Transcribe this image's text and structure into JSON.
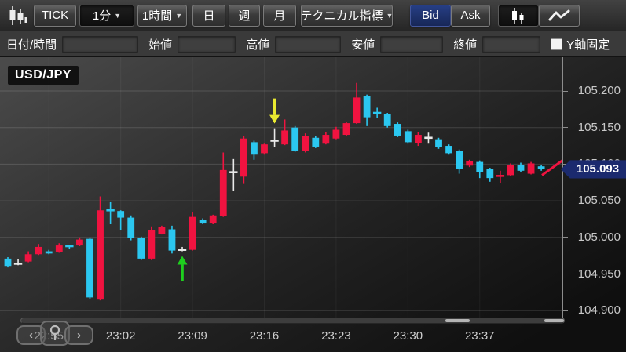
{
  "toolbar": {
    "app_icon": "candlestick-chart-icon",
    "tick_label": "TICK",
    "tf_1min": "1分",
    "tf_1hour": "1時間",
    "tf_day": "日",
    "tf_week": "週",
    "tf_month": "月",
    "indicators_label": "テクニカル指標",
    "caret": "▼",
    "bid_label": "Bid",
    "ask_label": "Ask",
    "selected_timeframe": "1分",
    "selected_side": "Bid",
    "selected_chart_type": "candlestick"
  },
  "infobar": {
    "fields": [
      {
        "label": "日付/時間",
        "value": ""
      },
      {
        "label": "始値",
        "value": ""
      },
      {
        "label": "高値",
        "value": ""
      },
      {
        "label": "安値",
        "value": ""
      },
      {
        "label": "終値",
        "value": ""
      }
    ],
    "y_lock_label": "Y軸固定",
    "y_lock_checked": false
  },
  "chart": {
    "symbol": "USD/JPY",
    "current_price": "105.093",
    "colors": {
      "up": "#f01340",
      "down": "#2bc7f0",
      "doji_white": "#e9e9e9",
      "doji_cyan": "#2bc7f0",
      "doji_red": "#f01340",
      "badge": "#1b2a6e",
      "arrow_up": "#1ecf1e",
      "arrow_down": "#e9e930"
    }
  },
  "chart_data": {
    "type": "candlestick",
    "symbol": "USD/JPY",
    "interval": "1分",
    "price_side": "Bid",
    "ylim": [
      104.892,
      105.241
    ],
    "y_ticks": [
      "105.200",
      "105.150",
      "105.100",
      "105.050",
      "105.000",
      "104.950",
      "104.900"
    ],
    "y_tick_values": [
      105.2,
      105.15,
      105.1,
      105.05,
      105.0,
      104.95,
      104.9
    ],
    "x_labels": [
      "22:55",
      "23:02",
      "23:09",
      "23:16",
      "23:23",
      "23:30",
      "23:37"
    ],
    "x_label_indices": [
      4,
      11,
      18,
      25,
      32,
      39,
      46
    ],
    "current_price": 105.093,
    "candle_order": [
      "time",
      "open",
      "high",
      "low",
      "close",
      "dir"
    ],
    "dir_legend": {
      "u": "up-red",
      "d": "down-cyan",
      "dw": "doji-white",
      "dc": "doji-cyan",
      "dr": "doji-red"
    },
    "candles": [
      [
        "22:51",
        104.971,
        104.973,
        104.959,
        104.961,
        "d"
      ],
      [
        "22:52",
        104.964,
        104.97,
        104.962,
        104.964,
        "dw"
      ],
      [
        "22:53",
        104.967,
        104.981,
        104.966,
        104.977,
        "u"
      ],
      [
        "22:54",
        104.977,
        104.991,
        104.976,
        104.987,
        "u"
      ],
      [
        "22:55",
        104.981,
        104.983,
        104.977,
        104.978,
        "d"
      ],
      [
        "22:56",
        104.98,
        104.992,
        104.979,
        104.989,
        "u"
      ],
      [
        "22:57",
        104.988,
        104.99,
        104.984,
        104.988,
        "dc"
      ],
      [
        "22:58",
        104.989,
        105.0,
        104.988,
        104.997,
        "u"
      ],
      [
        "22:59",
        104.998,
        105.0,
        104.916,
        104.918,
        "d"
      ],
      [
        "23:00",
        104.915,
        105.056,
        104.914,
        105.037,
        "u"
      ],
      [
        "23:01",
        105.037,
        105.048,
        105.018,
        105.037,
        "dc"
      ],
      [
        "23:02",
        105.036,
        105.037,
        105.01,
        105.027,
        "d"
      ],
      [
        "23:03",
        105.027,
        105.03,
        104.996,
        104.999,
        "d"
      ],
      [
        "23:04",
        104.999,
        105.001,
        104.969,
        104.971,
        "d"
      ],
      [
        "23:05",
        104.971,
        105.015,
        104.969,
        105.01,
        "u"
      ],
      [
        "23:06",
        105.005,
        105.016,
        105.004,
        105.014,
        "u"
      ],
      [
        "23:07",
        105.011,
        105.016,
        104.978,
        104.982,
        "d"
      ],
      [
        "23:08",
        104.983,
        104.987,
        104.981,
        104.983,
        "dw"
      ],
      [
        "23:09",
        104.983,
        105.034,
        104.982,
        105.028,
        "u"
      ],
      [
        "23:10",
        105.024,
        105.026,
        105.018,
        105.019,
        "d"
      ],
      [
        "23:11",
        105.019,
        105.031,
        105.018,
        105.03,
        "u"
      ],
      [
        "23:12",
        105.029,
        105.116,
        105.028,
        105.092,
        "u"
      ],
      [
        "23:13",
        105.089,
        105.107,
        105.063,
        105.089,
        "dw"
      ],
      [
        "23:14",
        105.083,
        105.138,
        105.073,
        105.135,
        "u"
      ],
      [
        "23:15",
        105.13,
        105.132,
        105.106,
        105.113,
        "d"
      ],
      [
        "23:16",
        105.115,
        105.128,
        105.113,
        105.127,
        "u"
      ],
      [
        "23:17",
        105.132,
        105.149,
        105.123,
        105.132,
        "dw"
      ],
      [
        "23:18",
        105.127,
        105.161,
        105.126,
        105.146,
        "u"
      ],
      [
        "23:19",
        105.15,
        105.152,
        105.117,
        105.118,
        "d"
      ],
      [
        "23:20",
        105.118,
        105.142,
        105.116,
        105.138,
        "u"
      ],
      [
        "23:21",
        105.136,
        105.138,
        105.122,
        105.124,
        "d"
      ],
      [
        "23:22",
        105.128,
        105.144,
        105.127,
        105.14,
        "u"
      ],
      [
        "23:23",
        105.135,
        105.151,
        105.134,
        105.147,
        "u"
      ],
      [
        "23:24",
        105.14,
        105.158,
        105.138,
        105.156,
        "u"
      ],
      [
        "23:25",
        105.156,
        105.211,
        105.155,
        105.191,
        "u"
      ],
      [
        "23:26",
        105.193,
        105.195,
        105.152,
        105.164,
        "d"
      ],
      [
        "23:27",
        105.17,
        105.177,
        105.163,
        105.17,
        "dc"
      ],
      [
        "23:28",
        105.168,
        105.17,
        105.15,
        105.152,
        "d"
      ],
      [
        "23:29",
        105.155,
        105.157,
        105.137,
        105.139,
        "d"
      ],
      [
        "23:30",
        105.145,
        105.147,
        105.128,
        105.13,
        "d"
      ],
      [
        "23:31",
        105.129,
        105.144,
        105.125,
        105.14,
        "u"
      ],
      [
        "23:32",
        105.136,
        105.143,
        105.128,
        105.136,
        "dw"
      ],
      [
        "23:33",
        105.134,
        105.136,
        105.121,
        105.123,
        "d"
      ],
      [
        "23:34",
        105.125,
        105.127,
        105.113,
        105.115,
        "d"
      ],
      [
        "23:35",
        105.118,
        105.12,
        105.087,
        105.093,
        "d"
      ],
      [
        "23:36",
        105.098,
        105.106,
        105.096,
        105.104,
        "u"
      ],
      [
        "23:37",
        105.103,
        105.105,
        105.081,
        105.089,
        "d"
      ],
      [
        "23:38",
        105.093,
        105.095,
        105.076,
        105.081,
        "d"
      ],
      [
        "23:39",
        105.084,
        105.091,
        105.074,
        105.084,
        "dr"
      ],
      [
        "23:40",
        105.085,
        105.101,
        105.084,
        105.099,
        "u"
      ],
      [
        "23:41",
        105.099,
        105.102,
        105.089,
        105.091,
        "d"
      ],
      [
        "23:42",
        105.087,
        105.103,
        105.086,
        105.101,
        "u"
      ],
      [
        "23:43",
        105.097,
        105.099,
        105.091,
        105.093,
        "d"
      ]
    ],
    "annotations": [
      {
        "type": "arrow-up",
        "color": "#1ecf1e",
        "candle_index": 17,
        "time": "23:08"
      },
      {
        "type": "arrow-down",
        "color": "#e9e930",
        "candle_index": 26,
        "time": "23:17"
      }
    ],
    "grid": true,
    "legend": "none"
  },
  "bottom": {
    "nav_left": "‹",
    "nav_right": "›",
    "zoom_icon": "magnifier-icon"
  }
}
